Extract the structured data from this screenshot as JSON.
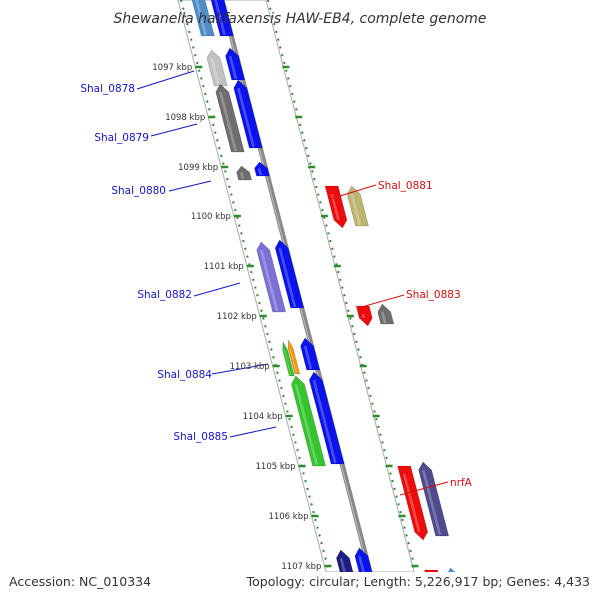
{
  "title": "Shewanella halifaxensis HAW-EB4, complete genome",
  "footer": {
    "accession": "Accession: NC_010334",
    "summary": "Topology: circular; Length: 5,226,917 bp; Genes: 4,433"
  },
  "colors": {
    "ticks": "#2e8b2e",
    "track_outline": "#aaaaaa",
    "backbone": "#888888",
    "forward_label": "#1515c8",
    "reverse_label": "#d01010",
    "arrow_blue": "#0a12ee",
    "arrow_navy": "#1c1c82",
    "arrow_lavender": "#7a70d8",
    "arrow_gray": "#6e6e6e",
    "arrow_lightgray": "#c2c2c2",
    "arrow_steel": "#4f8cc9",
    "arrow_green": "#35c42e",
    "arrow_orange": "#f29a10",
    "arrow_red": "#ee0b0b",
    "arrow_khaki": "#bcb672",
    "arrow_slate": "#4d4a8e"
  },
  "position_labels": [
    "1097 kbp",
    "1098 kbp",
    "1099 kbp",
    "1100 kbp",
    "1101 kbp",
    "1102 kbp",
    "1103 kbp",
    "1104 kbp",
    "1105 kbp",
    "1106 kbp",
    "1107 kbp"
  ],
  "gene_labels": {
    "forward": [
      "Shal_0878",
      "Shal_0879",
      "Shal_0880",
      "Shal_0882",
      "Shal_0884",
      "Shal_0885"
    ],
    "reverse": [
      "Shal_0881",
      "Shal_0883",
      "nrfA"
    ]
  }
}
